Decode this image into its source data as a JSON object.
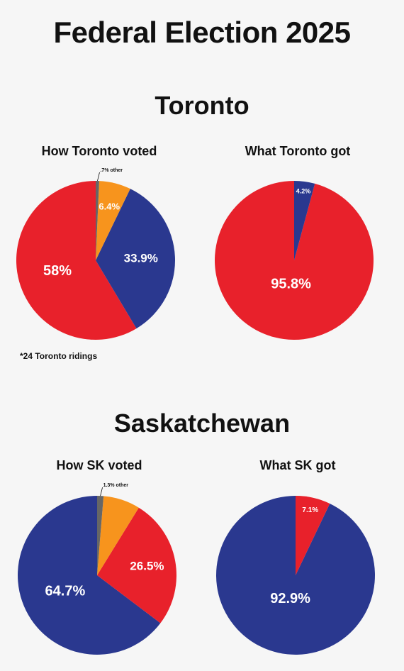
{
  "title": "Federal Election 2025",
  "colors": {
    "liberal": "#e8212b",
    "conservative": "#2a388f",
    "ndp": "#f7941d",
    "other": "#666666",
    "text_light": "#ffffff",
    "text_dark": "#111111"
  },
  "sections": [
    {
      "name": "Toronto",
      "voted_title": "How Toronto voted",
      "got_title": "What Toronto got",
      "note": "*24 Toronto ridings"
    },
    {
      "name": "Saskatchewan",
      "voted_title": "How SK voted",
      "got_title": "What SK got",
      "note": ""
    }
  ],
  "chart_data": [
    {
      "type": "pie",
      "title": "How Toronto voted",
      "slices": [
        {
          "label": "58%",
          "value": 58,
          "color": "#e8212b"
        },
        {
          "label": "33.9%",
          "value": 33.9,
          "color": "#2a388f"
        },
        {
          "label": "6.4%",
          "value": 6.4,
          "color": "#f7941d"
        },
        {
          "label": ".7% other",
          "value": 0.7,
          "color": "#666666"
        }
      ]
    },
    {
      "type": "pie",
      "title": "What Toronto got",
      "slices": [
        {
          "label": "95.8%",
          "value": 95.8,
          "color": "#e8212b"
        },
        {
          "label": "4.2%",
          "value": 4.2,
          "color": "#2a388f"
        }
      ]
    },
    {
      "type": "pie",
      "title": "How SK voted",
      "slices": [
        {
          "label": "64.7%",
          "value": 64.7,
          "color": "#2a388f"
        },
        {
          "label": "26.5%",
          "value": 26.5,
          "color": "#e8212b"
        },
        {
          "label": "",
          "value": 7.5,
          "color": "#f7941d"
        },
        {
          "label": "1.3% other",
          "value": 1.3,
          "color": "#666666"
        }
      ]
    },
    {
      "type": "pie",
      "title": "What SK got",
      "slices": [
        {
          "label": "92.9%",
          "value": 92.9,
          "color": "#2a388f"
        },
        {
          "label": "7.1%",
          "value": 7.1,
          "color": "#e8212b"
        }
      ]
    }
  ]
}
